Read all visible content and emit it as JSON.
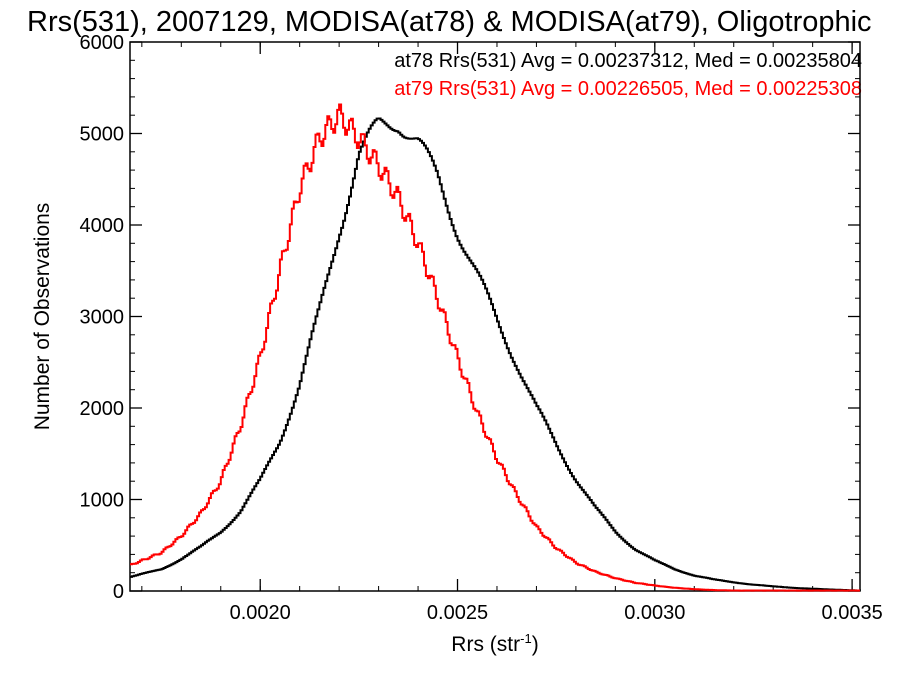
{
  "chart_data": {
    "type": "line",
    "title": "Rrs(531), 2007129, MODISA(at78) & MODISA(at79), Oligotrophic",
    "xlabel": "Rrs (str",
    "xlabel_sup": "-1",
    "xlabel_close": ")",
    "ylabel": "Number of Observations",
    "xlim": [
      0.00167,
      0.00352
    ],
    "ylim": [
      0,
      6000
    ],
    "x_ticks": [
      0.002,
      0.0025,
      0.003,
      0.0035
    ],
    "x_tick_labels": [
      "0.0020",
      "0.0025",
      "0.0030",
      "0.0035"
    ],
    "y_ticks": [
      0,
      1000,
      2000,
      3000,
      4000,
      5000,
      6000
    ],
    "y_tick_labels": [
      "0",
      "1000",
      "2000",
      "3000",
      "4000",
      "5000",
      "6000"
    ],
    "legend_position": "top-right",
    "series": [
      {
        "name": "at78",
        "legend_text": "at78 Rrs(531) Avg = 0.00237312, Med = 0.00235804",
        "color": "#000000",
        "x": [
          0.00167,
          0.00175,
          0.0018,
          0.00185,
          0.0019,
          0.00195,
          0.002,
          0.00205,
          0.0021,
          0.00215,
          0.0022,
          0.00225,
          0.0023,
          0.00235,
          0.0024,
          0.00245,
          0.0025,
          0.00255,
          0.0026,
          0.00265,
          0.0027,
          0.00275,
          0.0028,
          0.00285,
          0.0029,
          0.00295,
          0.003,
          0.00305,
          0.0031,
          0.00315,
          0.0032,
          0.00325,
          0.0033,
          0.00335,
          0.0034,
          0.00345,
          0.0035,
          0.00352
        ],
        "y": [
          150,
          240,
          350,
          480,
          650,
          870,
          1200,
          1650,
          2250,
          3050,
          3950,
          4750,
          5080,
          5150,
          4900,
          4500,
          3950,
          3450,
          2950,
          2500,
          2000,
          1600,
          1230,
          900,
          650,
          460,
          330,
          240,
          170,
          125,
          95,
          70,
          50,
          35,
          25,
          15,
          8,
          5
        ]
      },
      {
        "name": "at79",
        "legend_text": "at79 Rrs(531) Avg = 0.00226505, Med = 0.00225308",
        "color": "#ff0000",
        "x": [
          0.00167,
          0.00175,
          0.0018,
          0.00185,
          0.0019,
          0.00195,
          0.002,
          0.00205,
          0.0021,
          0.00215,
          0.0022,
          0.00225,
          0.0023,
          0.00235,
          0.0024,
          0.00245,
          0.0025,
          0.00255,
          0.0026,
          0.00265,
          0.0027,
          0.00275,
          0.0028,
          0.00285,
          0.0029,
          0.00295,
          0.003,
          0.00305,
          0.0031,
          0.00315,
          0.0032
        ],
        "y": [
          280,
          420,
          600,
          850,
          1200,
          1800,
          2550,
          3500,
          4400,
          4950,
          5200,
          4950,
          4650,
          4300,
          3800,
          3200,
          2550,
          1950,
          1450,
          1050,
          700,
          470,
          310,
          210,
          140,
          90,
          60,
          35,
          20,
          10,
          5
        ]
      }
    ]
  }
}
